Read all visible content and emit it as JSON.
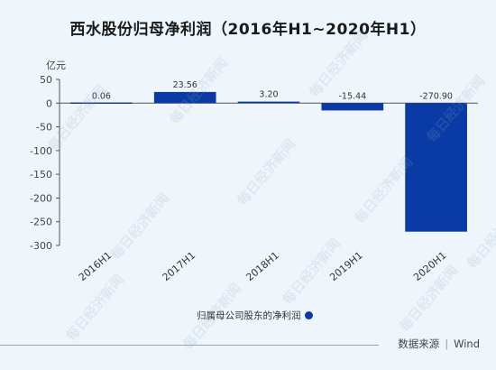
{
  "title": "西水股份归母净利润（2016年H1~2020年H1）",
  "chart_data": {
    "type": "bar",
    "categories": [
      "2016H1",
      "2017H1",
      "2018H1",
      "2019H1",
      "2020H1"
    ],
    "values": [
      0.06,
      23.56,
      3.2,
      -15.44,
      -270.9
    ],
    "value_labels": [
      "0.06",
      "23.56",
      "3.20",
      "-15.44",
      "-270.90"
    ],
    "ylim": [
      -300,
      50
    ],
    "yticks": [
      50,
      0,
      -50,
      -100,
      -150,
      -200,
      -250,
      -300
    ],
    "unit": "亿元",
    "series": [
      {
        "name": "归属母公司股东的净利润",
        "color": "#0a3aa5"
      }
    ],
    "legend_position": "bottom-center",
    "grid": false
  },
  "source": {
    "label": "数据来源",
    "value": "Wind"
  },
  "watermark": "每日经济新闻"
}
